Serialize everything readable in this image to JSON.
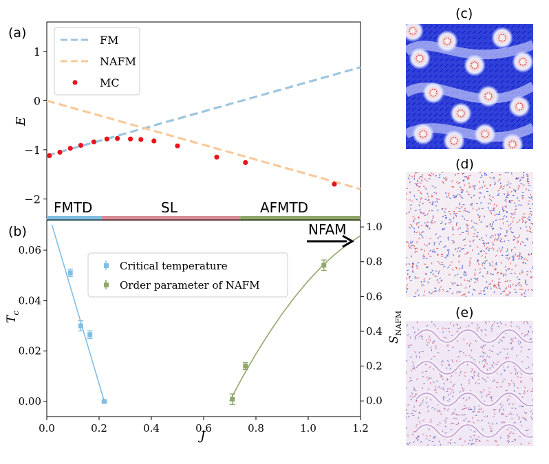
{
  "chart_data": [
    {
      "panel": "(a)",
      "type": "line+scatter",
      "xlabel": "",
      "ylabel": "E",
      "xlim": [
        0.0,
        1.2
      ],
      "ylim": [
        -2.4,
        1.6
      ],
      "yticks": [
        -2,
        -1,
        0,
        1
      ],
      "ytick_labels": [
        "−2",
        "−1",
        "0",
        "1"
      ],
      "series": [
        {
          "name": "FM",
          "style": "dashed",
          "color": "#9ec5e0",
          "x": [
            0.0,
            1.2
          ],
          "y": [
            -1.12,
            0.68
          ]
        },
        {
          "name": "NAFM",
          "style": "dashed",
          "color": "#f8c99a",
          "x": [
            0.0,
            1.2
          ],
          "y": [
            0.0,
            -1.8
          ]
        },
        {
          "name": "MC",
          "style": "points",
          "color": "#e8141c",
          "x": [
            0.01,
            0.05,
            0.09,
            0.13,
            0.18,
            0.23,
            0.27,
            0.32,
            0.36,
            0.41,
            0.5,
            0.65,
            0.76,
            1.1
          ],
          "y": [
            -1.12,
            -1.05,
            -0.97,
            -0.91,
            -0.84,
            -0.78,
            -0.77,
            -0.78,
            -0.79,
            -0.82,
            -0.92,
            -1.15,
            -1.26,
            -1.7
          ]
        }
      ],
      "phase_regions": [
        {
          "label": "FMTD",
          "from": 0.0,
          "to": 0.21,
          "color": "#7fbfdf"
        },
        {
          "label": "SL",
          "from": 0.21,
          "to": 0.74,
          "color": "#d98d95"
        },
        {
          "label": "AFMTD",
          "from": 0.74,
          "to": 1.2,
          "color": "#8fa86a"
        }
      ]
    },
    {
      "panel": "(b)",
      "type": "errorbar+line",
      "xlabel": "J",
      "ylabel_left": "T_c",
      "ylabel_right": "S_NAFM",
      "xlim": [
        0.0,
        1.2
      ],
      "xticks": [
        0.0,
        0.2,
        0.4,
        0.6,
        0.8,
        1.0,
        1.2
      ],
      "xtick_labels": [
        "0.0",
        "0.2",
        "0.4",
        "0.6",
        "0.8",
        "1.0",
        "1.2"
      ],
      "ylim_left": [
        -0.006,
        0.072
      ],
      "yticks_left": [
        0.0,
        0.02,
        0.04,
        0.06
      ],
      "ytick_labels_left": [
        "0.00",
        "0.02",
        "0.04",
        "0.06"
      ],
      "ylim_right": [
        -0.09,
        1.04
      ],
      "yticks_right": [
        0.0,
        0.2,
        0.4,
        0.6,
        0.8,
        1.0
      ],
      "ytick_labels_right": [
        "0.0",
        "0.2",
        "0.4",
        "0.6",
        "0.8",
        "1.0"
      ],
      "series": [
        {
          "name": "Critical temperature",
          "axis": "left",
          "color": "#7fbfe6",
          "x": [
            0.09,
            0.13,
            0.165,
            0.22
          ],
          "y": [
            0.051,
            0.03,
            0.0265,
            0.0
          ],
          "yerr": [
            0.0015,
            0.002,
            0.0015,
            0.0003
          ],
          "fit_x": [
            0.02,
            0.22
          ],
          "fit_y": [
            0.07,
            0.0
          ]
        },
        {
          "name": "Order parameter of NAFM",
          "axis": "right",
          "color": "#8fa86a",
          "x": [
            0.71,
            0.76,
            1.06
          ],
          "y": [
            0.01,
            0.2,
            0.78
          ],
          "yerr": [
            0.03,
            0.02,
            0.03
          ],
          "fit_x": [
            0.7,
            0.75,
            0.8,
            0.85,
            0.9,
            0.95,
            1.0,
            1.05,
            1.1,
            1.15,
            1.2
          ],
          "fit_y": [
            0.0,
            0.14,
            0.27,
            0.39,
            0.5,
            0.6,
            0.69,
            0.77,
            0.84,
            0.9,
            0.95
          ]
        }
      ],
      "annotation": "NFAM"
    }
  ],
  "labels": {
    "a": "(a)",
    "b": "(b)",
    "c": "(c)",
    "d": "(d)",
    "e": "(e)",
    "e_axis": "E",
    "tc_axis": "T",
    "tc_sub": "c",
    "s_axis": "S",
    "s_sub": "NAFM",
    "j_axis": "J",
    "fm": "FM",
    "nafm": "NAFM",
    "mc": "MC",
    "crit": "Critical temperature",
    "order": "Order parameter of NAFM",
    "fmtd": "FMTD",
    "sl": "SL",
    "afmtd": "AFMTD",
    "nfam": "NFAM"
  },
  "colors": {
    "fm": "#9ec5e0",
    "nafm": "#f8c99a",
    "mc": "#e8141c",
    "crit": "#7fbfe6",
    "order": "#8fa86a",
    "fmtd_bar": "#7fbfdf",
    "sl_bar": "#d98d95",
    "afmtd_bar": "#8fa86a"
  }
}
